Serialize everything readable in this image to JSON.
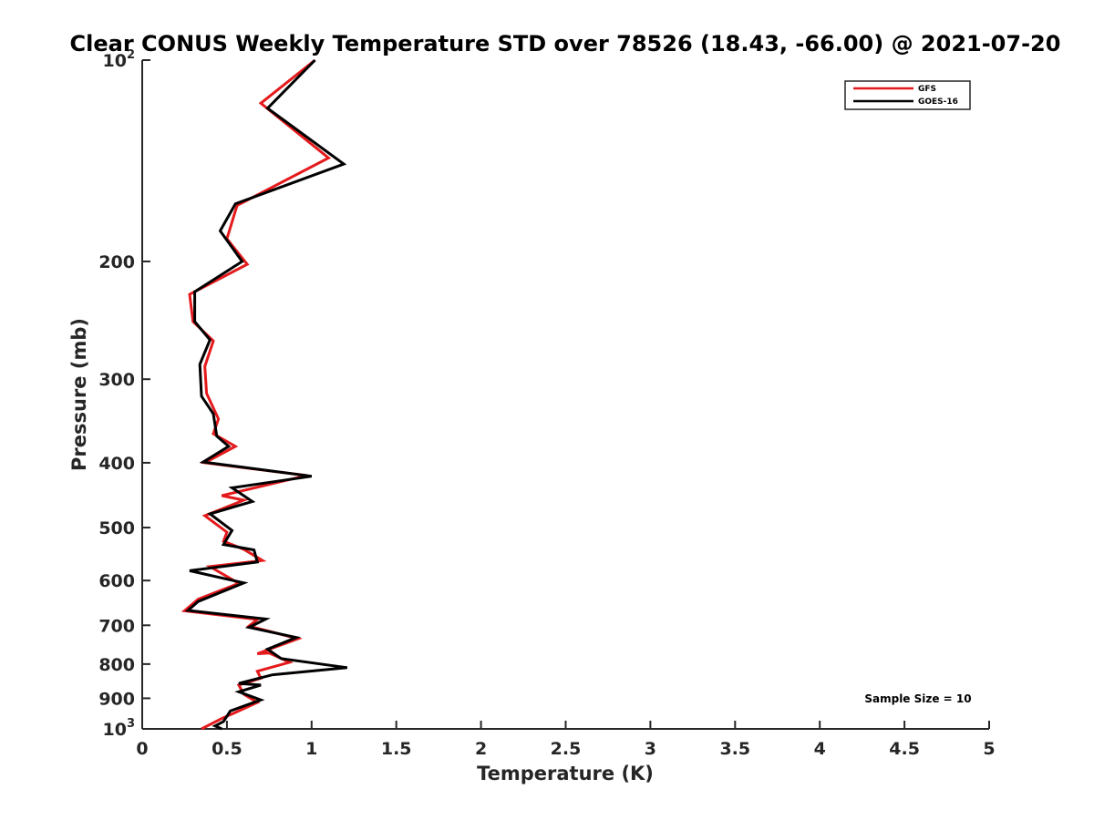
{
  "chart_data": {
    "type": "line",
    "title": "Clear CONUS Weekly Temperature STD over 78526 (18.43, -66.00) @ 2021-07-20",
    "xlabel": "Temperature (K)",
    "ylabel": "Pressure (mb)",
    "xlim": [
      0,
      5
    ],
    "ylim": [
      100,
      1000
    ],
    "y_scale": "log",
    "y_reversed": true,
    "grid": false,
    "legend_position": "top-right",
    "x_ticks": [
      "0",
      "0.5",
      "1",
      "1.5",
      "2",
      "2.5",
      "3",
      "3.5",
      "4",
      "4.5",
      "5"
    ],
    "x_tick_values": [
      0,
      0.5,
      1,
      1.5,
      2,
      2.5,
      3,
      3.5,
      4,
      4.5,
      5
    ],
    "y_ticks": [
      {
        "value": 100,
        "base": "10",
        "exp": "2"
      },
      {
        "value": 200,
        "label": "200"
      },
      {
        "value": 300,
        "label": "300"
      },
      {
        "value": 400,
        "label": "400"
      },
      {
        "value": 500,
        "label": "500"
      },
      {
        "value": 600,
        "label": "600"
      },
      {
        "value": 700,
        "label": "700"
      },
      {
        "value": 800,
        "label": "800"
      },
      {
        "value": 900,
        "label": "900"
      },
      {
        "value": 1000,
        "base": "10",
        "exp": "3"
      }
    ],
    "series": [
      {
        "name": "GFS",
        "color": "#e41a1c",
        "points": [
          [
            1.02,
            100
          ],
          [
            0.7,
            116
          ],
          [
            1.1,
            140
          ],
          [
            0.56,
            165
          ],
          [
            0.5,
            185
          ],
          [
            0.62,
            202
          ],
          [
            0.28,
            224
          ],
          [
            0.3,
            246
          ],
          [
            0.42,
            263
          ],
          [
            0.37,
            287
          ],
          [
            0.38,
            315
          ],
          [
            0.45,
            344
          ],
          [
            0.42,
            362
          ],
          [
            0.55,
            378
          ],
          [
            0.37,
            400
          ],
          [
            0.97,
            418
          ],
          [
            0.47,
            448
          ],
          [
            0.6,
            455
          ],
          [
            0.37,
            480
          ],
          [
            0.5,
            508
          ],
          [
            0.48,
            524
          ],
          [
            0.6,
            539
          ],
          [
            0.71,
            560
          ],
          [
            0.4,
            572
          ],
          [
            0.57,
            606
          ],
          [
            0.33,
            640
          ],
          [
            0.25,
            666
          ],
          [
            0.68,
            686
          ],
          [
            0.63,
            702
          ],
          [
            0.92,
            733
          ],
          [
            0.68,
            772
          ],
          [
            0.75,
            770
          ],
          [
            0.87,
            795
          ],
          [
            0.68,
            820
          ],
          [
            0.7,
            840
          ],
          [
            0.57,
            860
          ],
          [
            0.6,
            888
          ],
          [
            0.68,
            913
          ],
          [
            0.55,
            945
          ],
          [
            0.47,
            965
          ],
          [
            0.35,
            1000
          ]
        ]
      },
      {
        "name": "GOES-16",
        "color": "#000000",
        "points": [
          [
            1.02,
            100
          ],
          [
            0.74,
            118
          ],
          [
            1.19,
            143
          ],
          [
            0.55,
            164
          ],
          [
            0.46,
            180
          ],
          [
            0.59,
            200
          ],
          [
            0.31,
            222
          ],
          [
            0.31,
            246
          ],
          [
            0.4,
            262
          ],
          [
            0.34,
            285
          ],
          [
            0.35,
            318
          ],
          [
            0.42,
            338
          ],
          [
            0.44,
            365
          ],
          [
            0.51,
            378
          ],
          [
            0.36,
            399
          ],
          [
            1.0,
            419
          ],
          [
            0.53,
            436
          ],
          [
            0.65,
            457
          ],
          [
            0.4,
            477
          ],
          [
            0.53,
            505
          ],
          [
            0.48,
            530
          ],
          [
            0.66,
            540
          ],
          [
            0.68,
            563
          ],
          [
            0.28,
            580
          ],
          [
            0.6,
            605
          ],
          [
            0.33,
            645
          ],
          [
            0.27,
            665
          ],
          [
            0.73,
            685
          ],
          [
            0.63,
            705
          ],
          [
            0.91,
            730
          ],
          [
            0.74,
            760
          ],
          [
            0.82,
            785
          ],
          [
            1.21,
            810
          ],
          [
            0.77,
            830
          ],
          [
            0.57,
            855
          ],
          [
            0.7,
            860
          ],
          [
            0.57,
            880
          ],
          [
            0.7,
            905
          ],
          [
            0.52,
            940
          ],
          [
            0.48,
            975
          ],
          [
            0.43,
            990
          ],
          [
            0.47,
            1000
          ]
        ]
      }
    ],
    "annotations": [
      "Sample Size = 10"
    ]
  }
}
